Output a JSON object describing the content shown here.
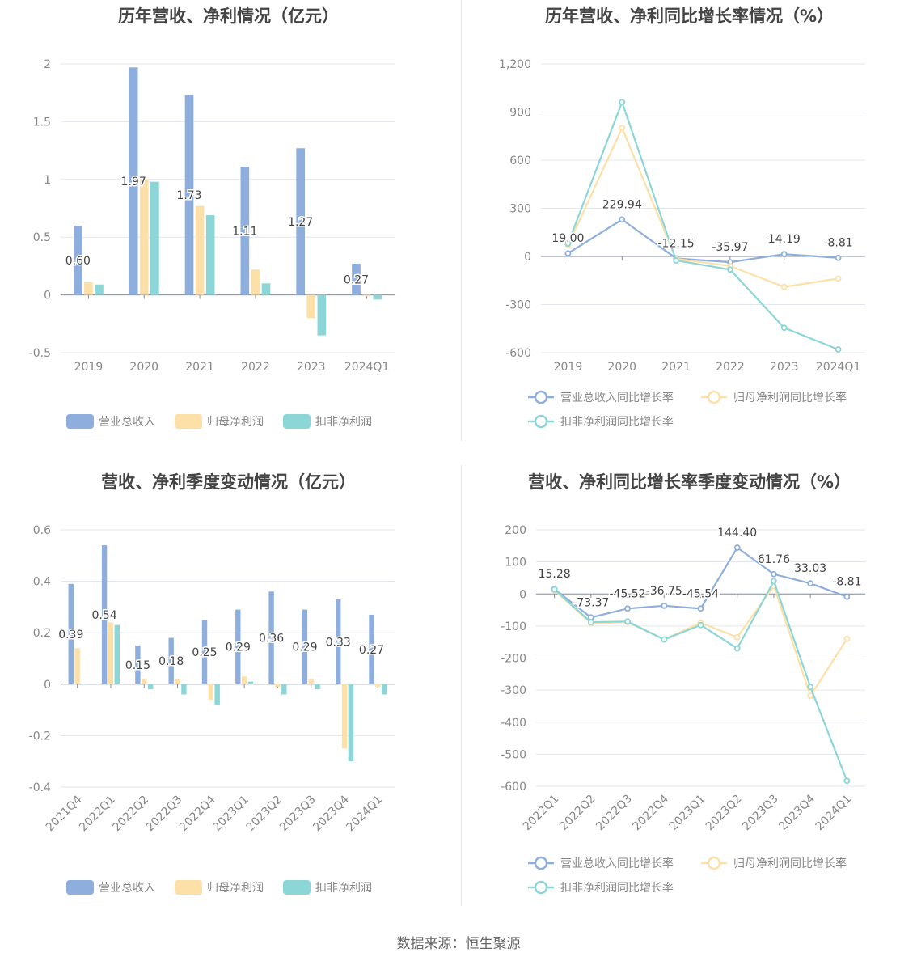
{
  "source_prefix": "数据来源：",
  "source_name": "恒生聚源",
  "colors": {
    "revenue": "#8eaedd",
    "net": "#fde0a8",
    "deducted": "#8dd6d8"
  },
  "chart_data": [
    {
      "id": "annual-amount",
      "type": "bar",
      "title": "历年营收、净利情况（亿元）",
      "categories": [
        "2019",
        "2020",
        "2021",
        "2022",
        "2023",
        "2024Q1"
      ],
      "ylim": [
        -0.5,
        2
      ],
      "yticks": [
        -0.5,
        0,
        0.5,
        1,
        1.5,
        2
      ],
      "ytick_labels": [
        "-0.5",
        "0",
        "0.5",
        "1",
        "1.5",
        "2"
      ],
      "grid": true,
      "legend_position": "bottom",
      "series": [
        {
          "name": "营业总收入",
          "color": "#8eaedd",
          "values": [
            0.6,
            1.97,
            1.73,
            1.11,
            1.27,
            0.27
          ],
          "labels": [
            "0.60",
            "1.97",
            "1.73",
            "1.11",
            "1.27",
            "0.27"
          ]
        },
        {
          "name": "归母净利润",
          "color": "#fde0a8",
          "values": [
            0.11,
            1.0,
            0.77,
            0.22,
            -0.2,
            -0.01
          ]
        },
        {
          "name": "扣非净利润",
          "color": "#8dd6d8",
          "values": [
            0.09,
            0.98,
            0.69,
            0.1,
            -0.35,
            -0.04
          ]
        }
      ]
    },
    {
      "id": "annual-growth",
      "type": "line",
      "title": "历年营收、净利同比增长率情况（%）",
      "categories": [
        "2019",
        "2020",
        "2021",
        "2022",
        "2023",
        "2024Q1"
      ],
      "ylim": [
        -600,
        1200
      ],
      "yticks": [
        -600,
        -300,
        0,
        300,
        600,
        900,
        1200
      ],
      "ytick_labels": [
        "-600",
        "-300",
        "0",
        "300",
        "600",
        "900",
        "1,200"
      ],
      "grid": true,
      "legend_position": "bottom",
      "series": [
        {
          "name": "营业总收入同比增长率",
          "color": "#8eaedd",
          "values": [
            19.0,
            229.94,
            -12.15,
            -35.97,
            14.19,
            -8.81
          ],
          "labels": [
            "19.00",
            "229.94",
            "-12.15",
            "-35.97",
            "14.19",
            "-8.81"
          ]
        },
        {
          "name": "归母净利润同比增长率",
          "color": "#fde0a8",
          "values": [
            70,
            800,
            -15,
            -60,
            -190,
            -138
          ]
        },
        {
          "name": "扣非净利润同比增长率",
          "color": "#8dd6d8",
          "values": [
            80,
            962,
            -25,
            -82,
            -445,
            -580
          ]
        }
      ]
    },
    {
      "id": "quarterly-amount",
      "type": "bar",
      "title": "营收、净利季度变动情况（亿元）",
      "categories": [
        "2021Q4",
        "2022Q1",
        "2022Q2",
        "2022Q3",
        "2022Q4",
        "2023Q1",
        "2023Q2",
        "2023Q3",
        "2023Q4",
        "2024Q1"
      ],
      "ylim": [
        -0.4,
        0.6
      ],
      "yticks": [
        -0.4,
        -0.2,
        0,
        0.2,
        0.4,
        0.6
      ],
      "ytick_labels": [
        "-0.4",
        "-0.2",
        "0",
        "0.2",
        "0.4",
        "0.6"
      ],
      "grid": true,
      "legend_position": "bottom",
      "series": [
        {
          "name": "营业总收入",
          "color": "#8eaedd",
          "values": [
            0.39,
            0.54,
            0.15,
            0.18,
            0.25,
            0.29,
            0.36,
            0.29,
            0.33,
            0.27
          ],
          "labels": [
            "0.39",
            "0.54",
            "0.15",
            "0.18",
            "0.25",
            "0.29",
            "0.36",
            "0.29",
            "0.33",
            "0.27"
          ]
        },
        {
          "name": "归母净利润",
          "color": "#fde0a8",
          "values": [
            0.14,
            0.24,
            0.02,
            0.02,
            -0.06,
            0.03,
            -0.01,
            0.02,
            -0.25,
            -0.01
          ]
        },
        {
          "name": "扣非净利润",
          "color": "#8dd6d8",
          "values": [
            0,
            0.23,
            -0.02,
            -0.04,
            -0.08,
            0.01,
            -0.04,
            -0.02,
            -0.3,
            -0.04
          ]
        }
      ]
    },
    {
      "id": "quarterly-growth",
      "type": "line",
      "title": "营收、净利同比增长率季度变动情况（%）",
      "categories": [
        "2022Q1",
        "2022Q2",
        "2022Q3",
        "2022Q4",
        "2023Q1",
        "2023Q2",
        "2023Q3",
        "2023Q4",
        "2024Q1"
      ],
      "ylim": [
        -600,
        200
      ],
      "yticks": [
        -600,
        -500,
        -400,
        -300,
        -200,
        -100,
        0,
        100,
        200
      ],
      "ytick_labels": [
        "-600",
        "-500",
        "-400",
        "-300",
        "-200",
        "-100",
        "0",
        "100",
        "200"
      ],
      "grid": true,
      "legend_position": "bottom",
      "series": [
        {
          "name": "营业总收入同比增长率",
          "color": "#8eaedd",
          "values": [
            15.28,
            -73.37,
            -45.52,
            -36.75,
            -45.54,
            144.4,
            61.76,
            33.03,
            -8.81
          ],
          "labels": [
            "15.28",
            "-73.37",
            "-45.52",
            "-36.75",
            "-45.54",
            "144.40",
            "61.76",
            "33.03",
            "-8.81"
          ]
        },
        {
          "name": "归母净利润同比增长率",
          "color": "#fde0a8",
          "values": [
            12,
            -92,
            -88,
            -142,
            -90,
            -135,
            25,
            -318,
            -140
          ]
        },
        {
          "name": "扣非净利润同比增长率",
          "color": "#8dd6d8",
          "values": [
            14,
            -88,
            -86,
            -142,
            -97,
            -170,
            40,
            -290,
            -583
          ]
        }
      ]
    }
  ]
}
